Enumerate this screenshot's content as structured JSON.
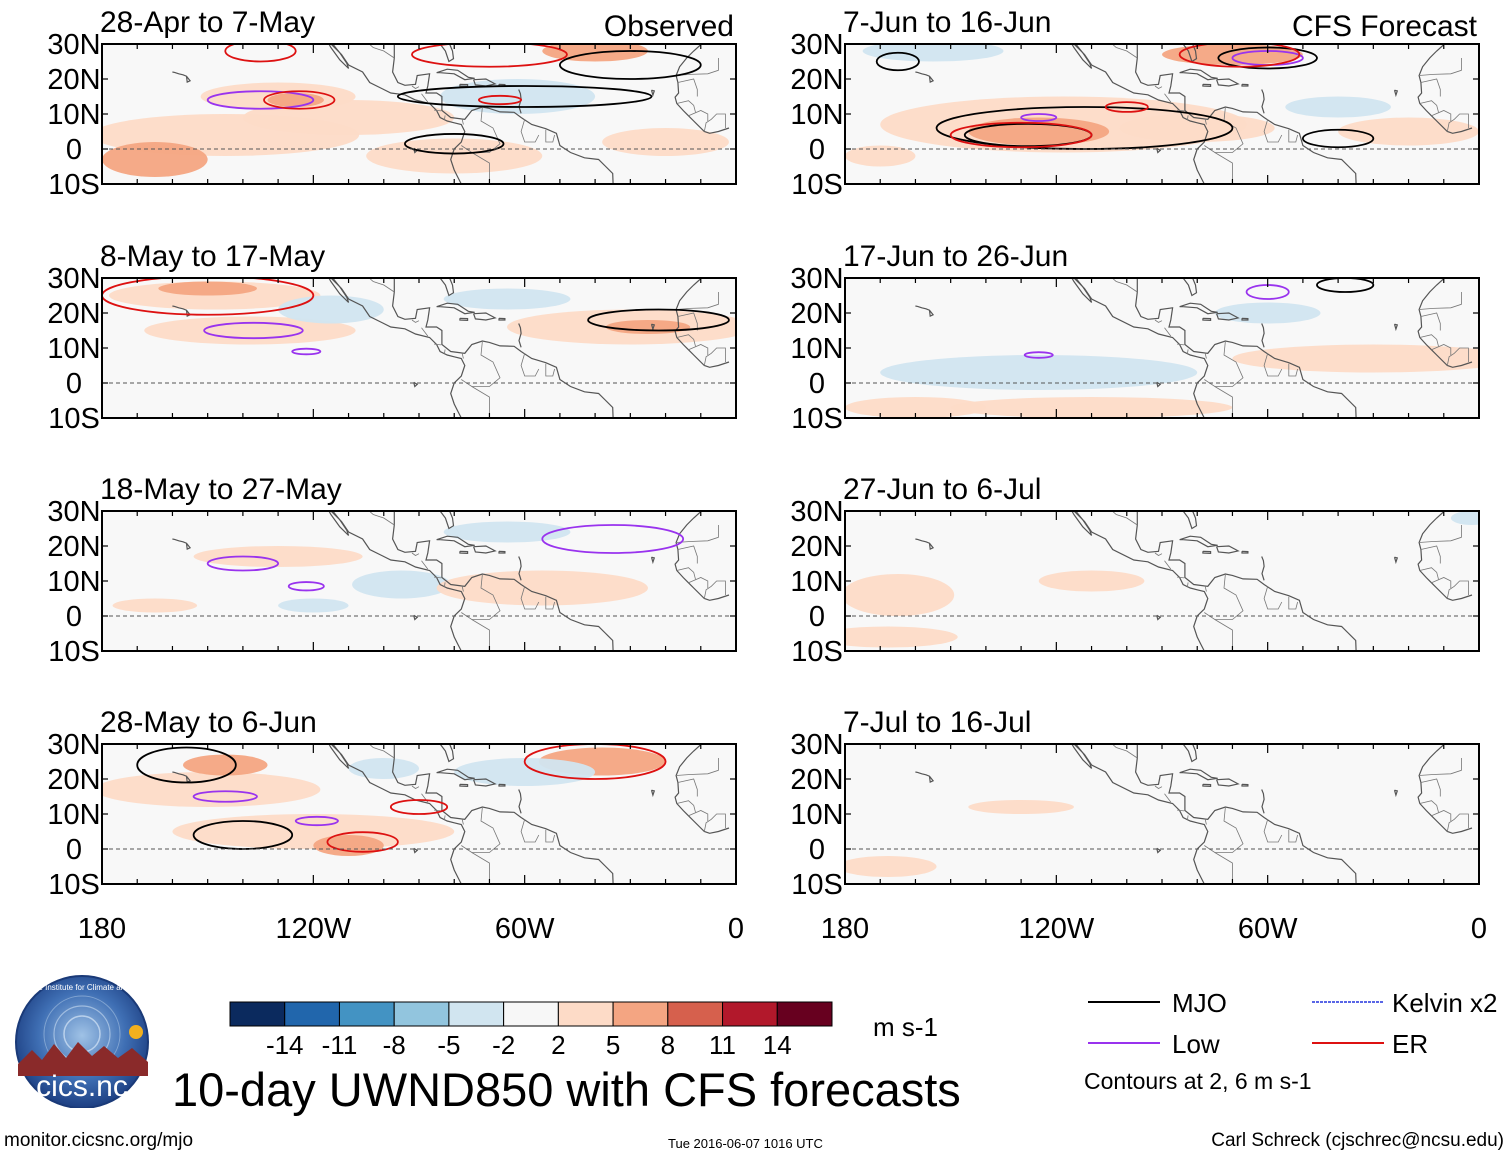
{
  "chart_data": {
    "type": "heatmap",
    "title": "10-day UWND850 with CFS forecasts",
    "variable": "UWND850",
    "units": "m s-1",
    "x_axis": {
      "ticks": [
        180,
        120,
        60,
        0
      ],
      "tick_labels": [
        "180",
        "120W",
        "60W",
        "0"
      ],
      "range_deg_west": [
        180,
        0
      ]
    },
    "y_axis": {
      "ticks": [
        30,
        20,
        10,
        0,
        -10
      ],
      "tick_labels": [
        "30N",
        "20N",
        "10N",
        "0",
        "10S"
      ],
      "range": [
        -10,
        30
      ]
    },
    "columns": [
      {
        "header": "Observed",
        "panels": [
          "28-Apr to 7-May",
          "8-May to 17-May",
          "18-May to 27-May",
          "28-May to 6-Jun"
        ]
      },
      {
        "header": "CFS Forecast",
        "panels": [
          "7-Jun to 16-Jun",
          "17-Jun to 26-Jun",
          "27-Jun to 6-Jul",
          "7-Jul to 16-Jul"
        ]
      }
    ],
    "colorbar": {
      "levels": [
        "-14",
        "-11",
        "-8",
        "-5",
        "-2",
        "2",
        "5",
        "8",
        "11",
        "14"
      ],
      "colors": [
        "#0b2a5e",
        "#2166ac",
        "#4393c3",
        "#92c5de",
        "#d1e5f0",
        "#f7f7f7",
        "#fddbc7",
        "#f4a582",
        "#d6604d",
        "#b2182b",
        "#67001f"
      ]
    },
    "contours": [
      {
        "name": "MJO",
        "color": "#000000"
      },
      {
        "name": "Kelvin x2",
        "color": "#2233dd"
      },
      {
        "name": "Low",
        "color": "#9933ee"
      },
      {
        "name": "ER",
        "color": "#dd1111"
      }
    ],
    "contour_note": "Contours at 2, 6 m s-1"
  },
  "footer": {
    "logo_text": "cics.nc",
    "logo_ring_text": "Cooperative Institute for Climate and Satellites",
    "url": "monitor.cicsnc.org/mjo",
    "timestamp": "Tue 2016-06-07 1016 UTC",
    "credit": "Carl Schreck (cjschrec@ncsu.edu)"
  },
  "colors": {
    "positive_light": "#fddbc7",
    "positive_mid": "#f4a582",
    "negative_light": "#d1e5f0",
    "land": "#ffffff",
    "coast": "#555555"
  }
}
